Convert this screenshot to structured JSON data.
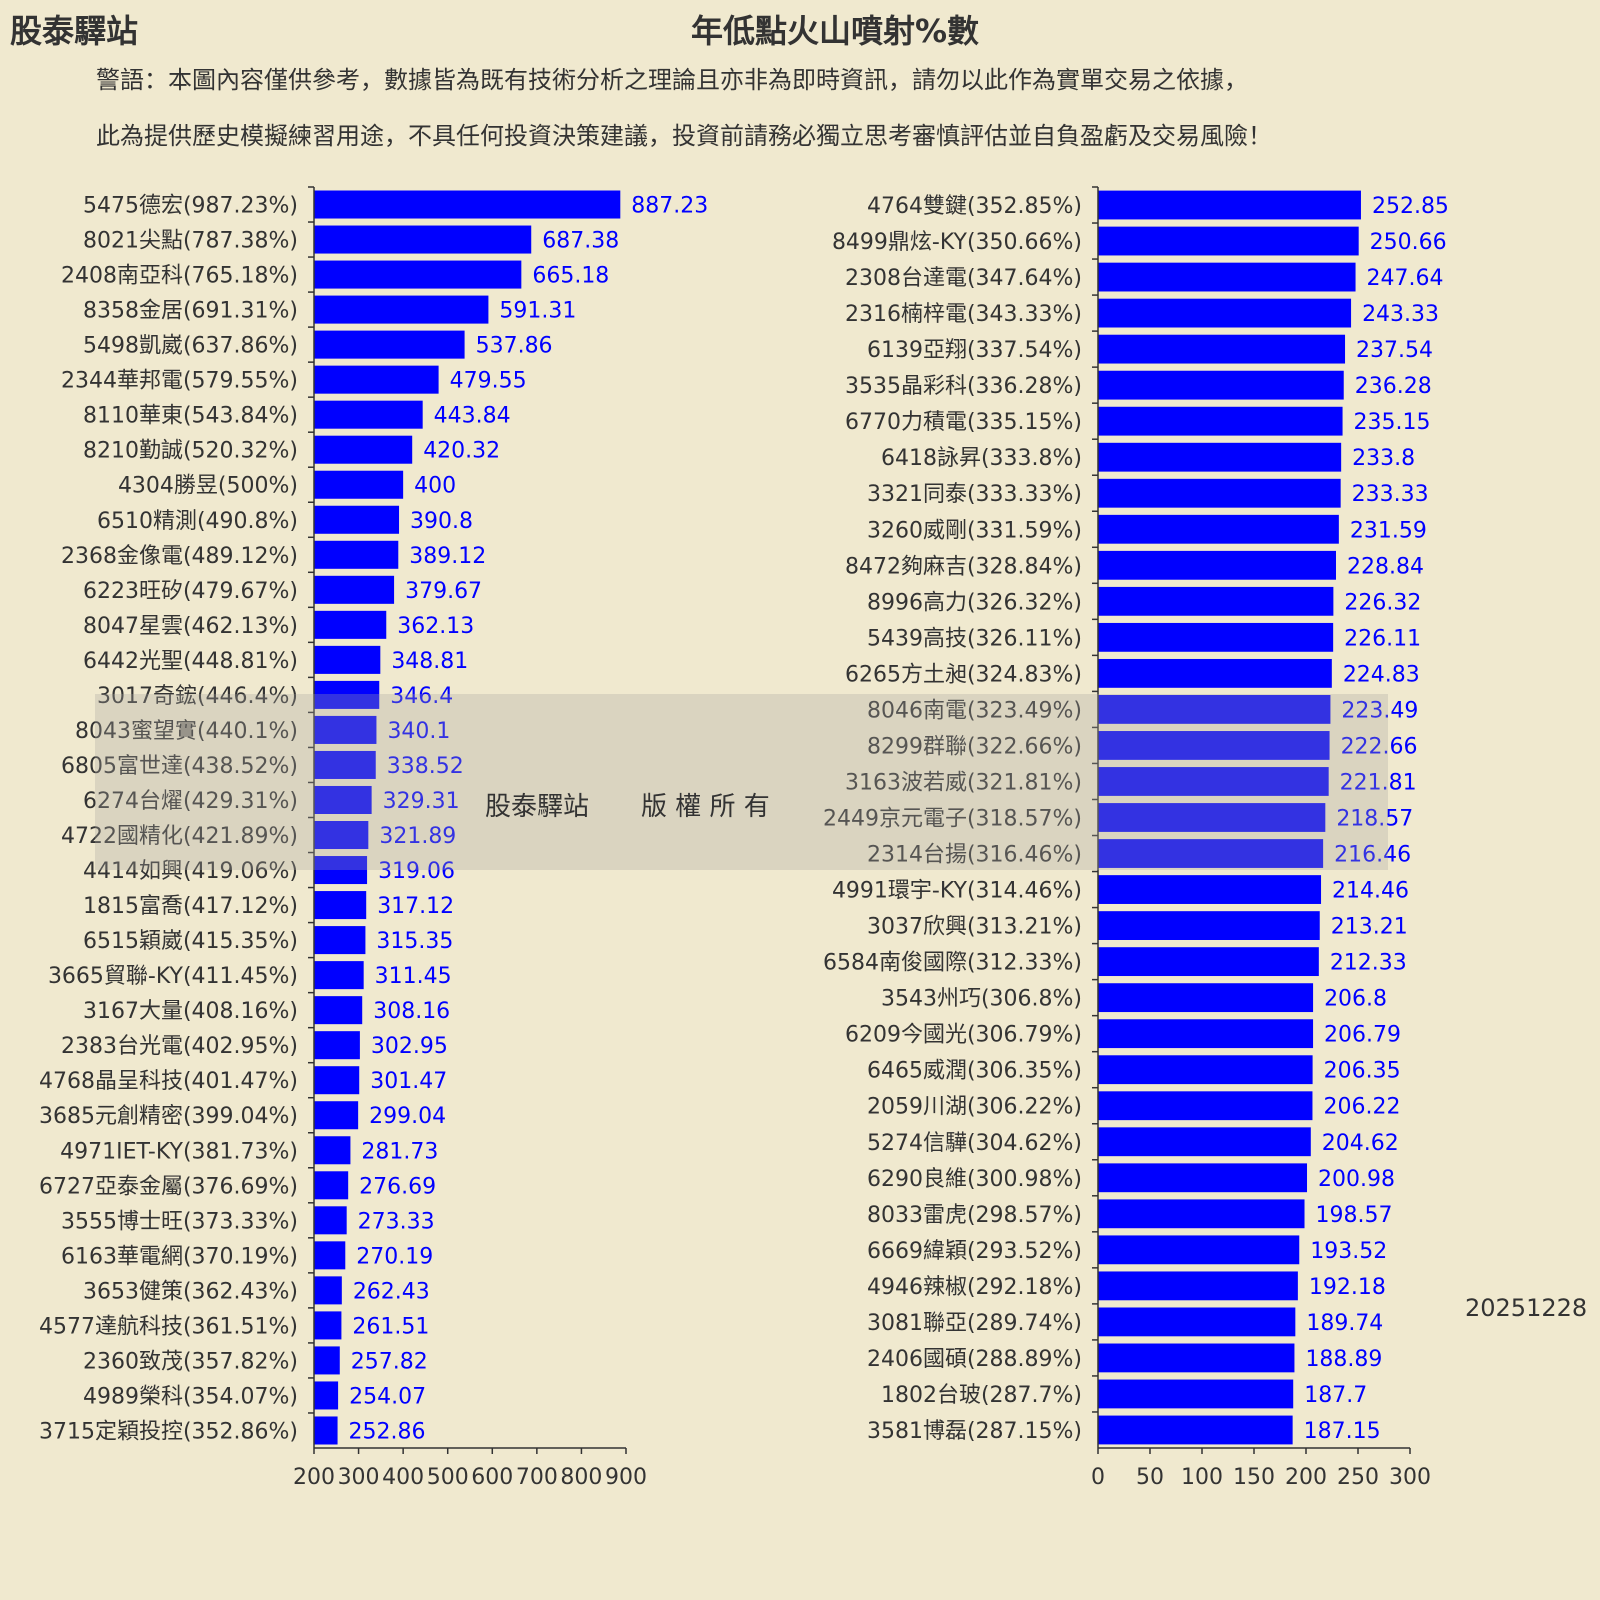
{
  "brand": "股泰驛站",
  "title": "年低點火山噴射%數",
  "warning_line1": "警語：本圖內容僅供參考，數據皆為既有技術分析之理論且亦非為即時資訊，請勿以此作為實單交易之依據，",
  "warning_line2": "此為提供歷史模擬練習用途，不具任何投資決策建議，投資前請務必獨立思考審慎評估並自負盈虧及交易風險！",
  "watermark": "股泰驛站　　版 權 所 有",
  "date": "20251228",
  "colors": {
    "bar": "#0000ff",
    "value_label": "#0000ff",
    "background": "#f0e9cf"
  },
  "chart_data": [
    {
      "type": "bar",
      "orientation": "horizontal",
      "xlim": [
        200,
        900
      ],
      "xticks": [
        200,
        300,
        400,
        500,
        600,
        700,
        800,
        900
      ],
      "categories": [
        "5475德宏(987.23%)",
        "8021尖點(787.38%)",
        "2408南亞科(765.18%)",
        "8358金居(691.31%)",
        "5498凱崴(637.86%)",
        "2344華邦電(579.55%)",
        "8110華東(543.84%)",
        "8210勤誠(520.32%)",
        "4304勝昱(500%)",
        "6510精測(490.8%)",
        "2368金像電(489.12%)",
        "6223旺矽(479.67%)",
        "8047星雲(462.13%)",
        "6442光聖(448.81%)",
        "3017奇鋐(446.4%)",
        "8043蜜望實(440.1%)",
        "6805富世達(438.52%)",
        "6274台燿(429.31%)",
        "4722國精化(421.89%)",
        "4414如興(419.06%)",
        "1815富喬(417.12%)",
        "6515穎崴(415.35%)",
        "3665貿聯-KY(411.45%)",
        "3167大量(408.16%)",
        "2383台光電(402.95%)",
        "4768晶呈科技(401.47%)",
        "3685元創精密(399.04%)",
        "4971IET-KY(381.73%)",
        "6727亞泰金屬(376.69%)",
        "3555博士旺(373.33%)",
        "6163華電網(370.19%)",
        "3653健策(362.43%)",
        "4577達航科技(361.51%)",
        "2360致茂(357.82%)",
        "4989榮科(354.07%)",
        "3715定穎投控(352.86%)"
      ],
      "values": [
        887.23,
        687.38,
        665.18,
        591.31,
        537.86,
        479.55,
        443.84,
        420.32,
        400,
        390.8,
        389.12,
        379.67,
        362.13,
        348.81,
        346.4,
        340.1,
        338.52,
        329.31,
        321.89,
        319.06,
        317.12,
        315.35,
        311.45,
        308.16,
        302.95,
        301.47,
        299.04,
        281.73,
        276.69,
        273.33,
        270.19,
        262.43,
        261.51,
        257.82,
        254.07,
        252.86
      ]
    },
    {
      "type": "bar",
      "orientation": "horizontal",
      "xlim": [
        0,
        300
      ],
      "xticks": [
        0,
        50,
        100,
        150,
        200,
        250,
        300
      ],
      "categories": [
        "4764雙鍵(352.85%)",
        "8499鼎炫-KY(350.66%)",
        "2308台達電(347.64%)",
        "2316楠梓電(343.33%)",
        "6139亞翔(337.54%)",
        "3535晶彩科(336.28%)",
        "6770力積電(335.15%)",
        "6418詠昇(333.8%)",
        "3321同泰(333.33%)",
        "3260威剛(331.59%)",
        "8472夠麻吉(328.84%)",
        "8996高力(326.32%)",
        "5439高技(326.11%)",
        "6265方土昶(324.83%)",
        "8046南電(323.49%)",
        "8299群聯(322.66%)",
        "3163波若威(321.81%)",
        "2449京元電子(318.57%)",
        "2314台揚(316.46%)",
        "4991環宇-KY(314.46%)",
        "3037欣興(313.21%)",
        "6584南俊國際(312.33%)",
        "3543州巧(306.8%)",
        "6209今國光(306.79%)",
        "6465威潤(306.35%)",
        "2059川湖(306.22%)",
        "5274信驊(304.62%)",
        "6290良維(300.98%)",
        "8033雷虎(298.57%)",
        "6669緯穎(293.52%)",
        "4946辣椒(292.18%)",
        "3081聯亞(289.74%)",
        "2406國碩(288.89%)",
        "1802台玻(287.7%)",
        "3581博磊(287.15%)"
      ],
      "values": [
        252.85,
        250.66,
        247.64,
        243.33,
        237.54,
        236.28,
        235.15,
        233.8,
        233.33,
        231.59,
        228.84,
        226.32,
        226.11,
        224.83,
        223.49,
        222.66,
        221.81,
        218.57,
        216.46,
        214.46,
        213.21,
        212.33,
        206.8,
        206.79,
        206.35,
        206.22,
        204.62,
        200.98,
        198.57,
        193.52,
        192.18,
        189.74,
        188.89,
        187.7,
        187.15
      ]
    }
  ]
}
